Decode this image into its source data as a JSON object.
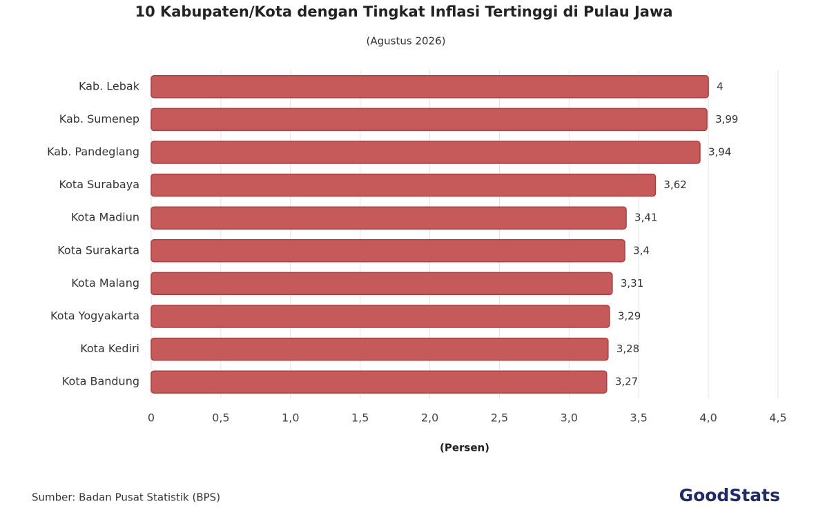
{
  "chart_data": {
    "type": "hbar",
    "title": "10 Kabupaten/Kota dengan Tingkat Inflasi Tertinggi di Pulau Jawa",
    "subtitle": "(Agustus 2026)",
    "categories": [
      "Kab. Lebak",
      "Kab. Sumenep",
      "Kab. Pandeglang",
      "Kota Surabaya",
      "Kota Madiun",
      "Kota Surakarta",
      "Kota Malang",
      "Kota Yogyakarta",
      "Kota Kediri",
      "Kota Bandung"
    ],
    "values": [
      4,
      3.99,
      3.94,
      3.62,
      3.41,
      3.4,
      3.31,
      3.29,
      3.28,
      3.27
    ],
    "value_labels": [
      "4",
      "3,99",
      "3,94",
      "3,62",
      "3,41",
      "3,4",
      "3,31",
      "3,29",
      "3,28",
      "3,27"
    ],
    "color": "#c65a5a",
    "xlim": [
      0,
      4.5
    ],
    "xticks": [
      0,
      {
        "value": 0.5,
        "label": "0,5"
      },
      {
        "value": 1.0,
        "label": "1,0"
      },
      {
        "value": 1.5,
        "label": "1,5"
      },
      {
        "value": 2.0,
        "label": "2,0"
      },
      {
        "value": 2.5,
        "label": "2,5"
      },
      {
        "value": 3.0,
        "label": "3,0"
      },
      {
        "value": 3.5,
        "label": "3,5"
      },
      {
        "value": 4.0,
        "label": "4,0"
      },
      {
        "value": 4.5,
        "label": "4,5"
      }
    ],
    "xlabel": "(Persen)",
    "grid": true,
    "source": "Sumber: Badan Pusat Statistik (BPS)",
    "brand": "GoodStats"
  }
}
